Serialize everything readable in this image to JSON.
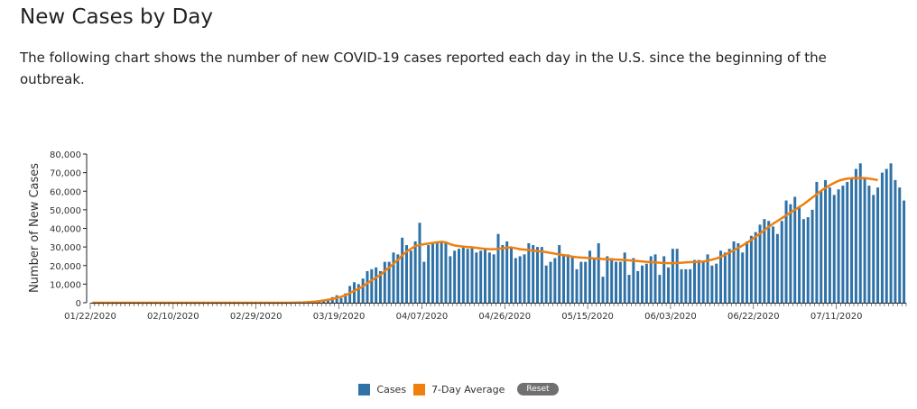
{
  "header": {
    "title": "New Cases by Day",
    "description": "The following chart shows the number of new COVID-19 cases reported each day in the U.S. since the beginning of the outbreak."
  },
  "legend": {
    "cases_label": "Cases",
    "avg_label": "7-Day Average",
    "reset_label": "Reset"
  },
  "colors": {
    "cases": "#2f72a8",
    "average": "#f07f0e"
  },
  "chart_data": {
    "type": "bar",
    "title": "",
    "xlabel": "",
    "ylabel": "Number of New Cases",
    "ylim": [
      0,
      80000
    ],
    "yticks": [
      0,
      10000,
      20000,
      30000,
      40000,
      50000,
      60000,
      70000,
      80000
    ],
    "ytick_labels": [
      "0",
      "10,000",
      "20,000",
      "30,000",
      "40,000",
      "50,000",
      "60,000",
      "70,000",
      "80,000"
    ],
    "x_start": "01/22/2020",
    "xtick_labels": [
      "01/22/2020",
      "02/10/2020",
      "02/29/2020",
      "03/19/2020",
      "04/07/2020",
      "04/26/2020",
      "05/15/2020",
      "06/03/2020",
      "06/22/2020",
      "07/11/2020"
    ],
    "legend_position": "bottom",
    "grid": false,
    "series": [
      {
        "name": "Cases",
        "type": "bar",
        "values": [
          0,
          0,
          0,
          0,
          0,
          0,
          0,
          0,
          0,
          0,
          0,
          0,
          0,
          0,
          0,
          0,
          0,
          0,
          0,
          0,
          0,
          0,
          0,
          0,
          0,
          0,
          0,
          0,
          0,
          0,
          0,
          0,
          0,
          0,
          0,
          0,
          0,
          0,
          0,
          0,
          0,
          0,
          0,
          0,
          0,
          50,
          100,
          150,
          200,
          300,
          500,
          800,
          1000,
          1500,
          2000,
          3000,
          4000,
          2500,
          5000,
          9000,
          11000,
          10000,
          13000,
          17000,
          18000,
          19000,
          17000,
          22000,
          22000,
          27000,
          26000,
          35000,
          31000,
          28000,
          33000,
          43000,
          22000,
          31000,
          32000,
          33000,
          33000,
          32000,
          25000,
          28000,
          29000,
          30000,
          29000,
          30000,
          27000,
          28000,
          29000,
          27000,
          26000,
          37000,
          31000,
          33000,
          30000,
          24000,
          25000,
          26000,
          32000,
          31000,
          30000,
          30000,
          20000,
          22000,
          24000,
          31000,
          26000,
          26000,
          25000,
          18000,
          22000,
          22000,
          28000,
          24000,
          32000,
          14000,
          25000,
          24000,
          22000,
          22000,
          27000,
          15000,
          24000,
          17000,
          20000,
          21000,
          25000,
          26000,
          15000,
          25000,
          19000,
          29000,
          29000,
          18000,
          18000,
          18000,
          23000,
          23000,
          22000,
          26000,
          20000,
          21000,
          28000,
          27000,
          29000,
          33000,
          32000,
          27000,
          33000,
          36000,
          38000,
          42000,
          45000,
          44000,
          41000,
          37000,
          44000,
          55000,
          53000,
          57000,
          52000,
          45000,
          46000,
          50000,
          65000,
          60000,
          66000,
          62000,
          58000,
          61000,
          63000,
          65000,
          67000,
          72000,
          75000,
          67000,
          63000,
          58000,
          62000,
          70000,
          72000,
          75000,
          66000,
          62000,
          55000
        ],
        "color": "#2f72a8"
      },
      {
        "name": "7-Day Average",
        "type": "line",
        "values": [
          0,
          0,
          0,
          0,
          0,
          0,
          0,
          0,
          0,
          0,
          0,
          0,
          0,
          0,
          0,
          0,
          0,
          0,
          0,
          0,
          0,
          0,
          0,
          0,
          0,
          0,
          0,
          0,
          0,
          0,
          0,
          0,
          0,
          0,
          0,
          0,
          0,
          0,
          0,
          0,
          0,
          0,
          0,
          0,
          0,
          30,
          60,
          100,
          150,
          250,
          400,
          600,
          850,
          1200,
          1600,
          2000,
          2600,
          3200,
          4000,
          5200,
          6400,
          7500,
          8800,
          10500,
          12000,
          13500,
          15000,
          17000,
          19000,
          21000,
          23000,
          25500,
          27500,
          29000,
          30500,
          31000,
          31500,
          31800,
          32200,
          32500,
          32800,
          32500,
          31500,
          30800,
          30500,
          30200,
          30000,
          29800,
          29500,
          29200,
          29000,
          28800,
          28800,
          29000,
          29200,
          29600,
          29800,
          29300,
          28800,
          28600,
          28300,
          28000,
          27800,
          27600,
          27200,
          26800,
          26400,
          26000,
          25600,
          25200,
          24800,
          24500,
          24300,
          24200,
          24000,
          23800,
          23700,
          23500,
          23400,
          23300,
          23200,
          23100,
          23000,
          22800,
          22600,
          22400,
          22200,
          22000,
          21800,
          21700,
          21500,
          21400,
          21300,
          21300,
          21400,
          21500,
          21700,
          21800,
          21900,
          22000,
          22200,
          22600,
          23200,
          23800,
          24700,
          25800,
          27000,
          28200,
          29500,
          30800,
          32200,
          33800,
          35500,
          37200,
          39000,
          40800,
          42500,
          44000,
          45500,
          47000,
          48500,
          50000,
          51500,
          53000,
          54800,
          56600,
          58400,
          60200,
          61800,
          63200,
          64500,
          65600,
          66300,
          66800,
          67000,
          67000,
          67100,
          67100,
          66800,
          66400,
          66000
        ],
        "color": "#f07f0e"
      }
    ]
  }
}
